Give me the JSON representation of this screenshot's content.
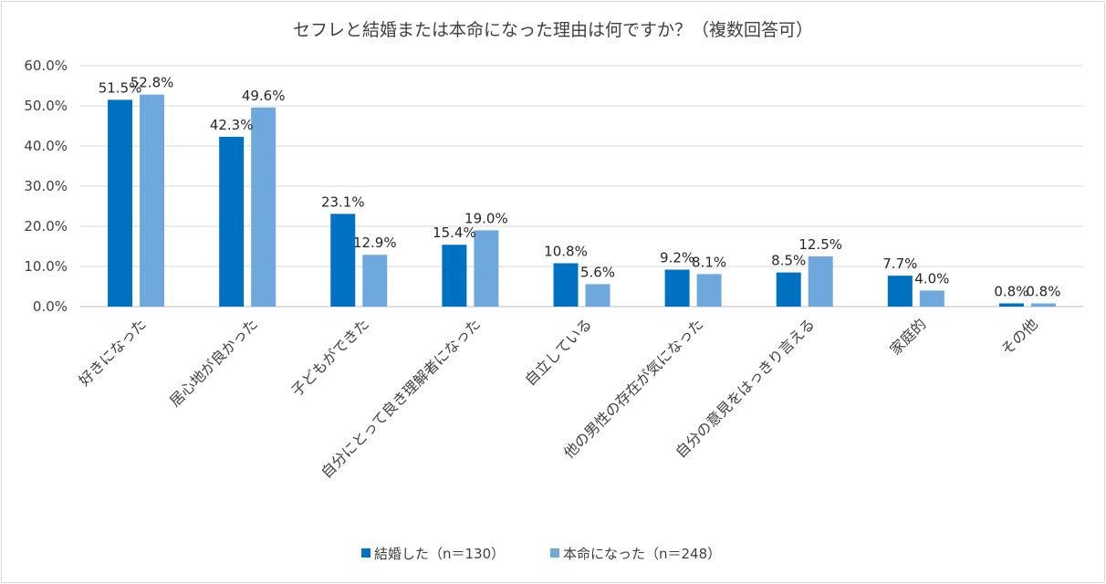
{
  "chart_data": {
    "type": "bar",
    "title": "セフレと結婚または本命になった理由は何ですか？（複数回答可）",
    "xlabel": "",
    "ylabel": "",
    "ylim": [
      0,
      60
    ],
    "yticks": [
      "0.0%",
      "10.0%",
      "20.0%",
      "30.0%",
      "40.0%",
      "50.0%",
      "60.0%"
    ],
    "categories": [
      "好きになった",
      "居心地が良かった",
      "子どもができた",
      "自分にとって良き理解者になった",
      "自立している",
      "他の男性の存在が気になった",
      "自分の意見をはっきり言える",
      "家庭的",
      "その他"
    ],
    "series": [
      {
        "name": "結婚した（n＝130）",
        "color": "#0070c0",
        "values": [
          51.5,
          42.3,
          23.1,
          15.4,
          10.8,
          9.2,
          8.5,
          7.7,
          0.8
        ],
        "labels": [
          "51.5%",
          "42.3%",
          "23.1%",
          "15.4%",
          "10.8%",
          "9.2%",
          "8.5%",
          "7.7%",
          "0.8%"
        ]
      },
      {
        "name": "本命になった（n＝248）",
        "color": "#6fa8dc",
        "values": [
          52.8,
          49.6,
          12.9,
          19.0,
          5.6,
          8.1,
          12.5,
          4.0,
          0.8
        ],
        "labels": [
          "52.8%",
          "49.6%",
          "12.9%",
          "19.0%",
          "5.6%",
          "8.1%",
          "12.5%",
          "4.0%",
          "0.8%"
        ]
      }
    ],
    "grid": true,
    "legend_position": "bottom"
  }
}
